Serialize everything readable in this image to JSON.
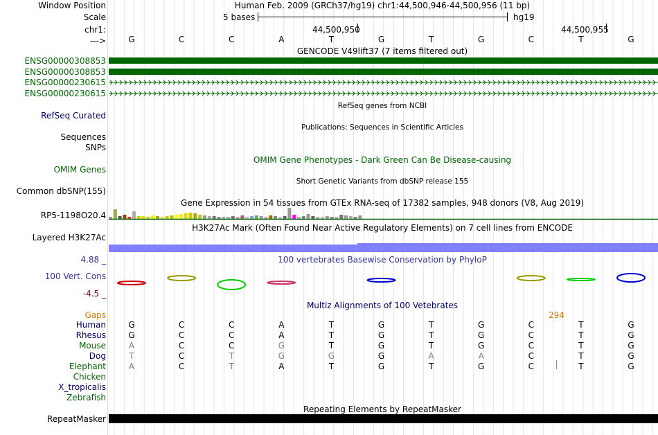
{
  "header": {
    "window_position_label": "Window Position",
    "scale_label": "Scale",
    "chr_label": "chr1:",
    "arrow_label": "--->",
    "assembly_text": "Human Feb. 2009 (GRCh37/hg19)   chr1:44,500,946-44,500,956 (11 bp)",
    "scale_text": "5 bases",
    "scale_db": "hg19",
    "coord_left": "44,500,950",
    "coord_right": "44,500,955"
  },
  "bases": [
    "G",
    "C",
    "C",
    "A",
    "T",
    "G",
    "T",
    "G",
    "C",
    "T",
    "G"
  ],
  "tracks": {
    "gencode_title": "GENCODE V49lift37 (7 items filtered out)",
    "gencode_items": [
      "ENSG00000308853",
      "ENSG00000308853",
      "ENSG00000230615",
      "ENSG00000230615"
    ],
    "refseq_label": "RefSeq Curated",
    "refseq_title": "RefSeq genes from NCBI",
    "publications_title": "Publications: Sequences in Scientific Articles",
    "sequences_label": "Sequences",
    "snps_label": "SNPs",
    "omim_title": "OMIM Gene Phenotypes - Dark Green Can Be Disease-causing",
    "omim_label": "OMIM Genes",
    "dbsnp_title": "Short Genetic Variants from dbSNP release 155",
    "dbsnp_label": "Common dbSNP(155)",
    "gtex_title": "Gene Expression in 54 tissues from GTEx RNA-seq of 17382 samples, 948 donors (V8, Aug 2019)",
    "gtex_label": "RP5-1198O20.4",
    "h3k27ac_title": "H3K27Ac Mark (Often Found Near Active Regulatory Elements) on 7 cell lines from ENCODE",
    "h3k27ac_label": "Layered H3K27Ac",
    "cons_top": "4.88 _",
    "cons_label": "100 Vert. Cons",
    "cons_bottom": "-4.5 _",
    "phylop_title": "100 vertebrates Basewise Conservation by PhyloP",
    "multiz_title": "Multiz Alignments of 100 Vetebrates",
    "gaps_label": "Gaps",
    "gaps_value": "294",
    "repeat_title": "Repeating Elements by RepeatMasker",
    "repeat_label": "RepeatMasker"
  },
  "species": [
    {
      "name": "Human",
      "seq": [
        "G",
        "C",
        "C",
        "A",
        "T",
        "G",
        "T",
        "G",
        "C",
        "T",
        "G"
      ]
    },
    {
      "name": "Rhesus",
      "seq": [
        "G",
        "C",
        "C",
        "A",
        "T",
        "G",
        "T",
        "G",
        "C",
        "T",
        "G"
      ]
    },
    {
      "name": "Mouse",
      "seq": [
        "A",
        "C",
        "C",
        "G",
        "T",
        "G",
        "T",
        "G",
        "C",
        "T",
        "G"
      ]
    },
    {
      "name": "Dog",
      "seq": [
        "T",
        "C",
        "T",
        "G",
        "G",
        "G",
        "A",
        "A",
        "C",
        "T",
        "G"
      ]
    },
    {
      "name": "Elephant",
      "seq": [
        "A",
        "C",
        "T",
        "A",
        "T",
        "G",
        "T",
        "G",
        "C",
        "T",
        "G"
      ]
    },
    {
      "name": "Chicken",
      "seq": []
    },
    {
      "name": "X_tropicalis",
      "seq": []
    },
    {
      "name": "Zebrafish",
      "seq": []
    }
  ],
  "colors": {
    "gencode_green": "#006400",
    "h3k27ac_blue": "#8080ff",
    "repeat_black": "#000000"
  }
}
